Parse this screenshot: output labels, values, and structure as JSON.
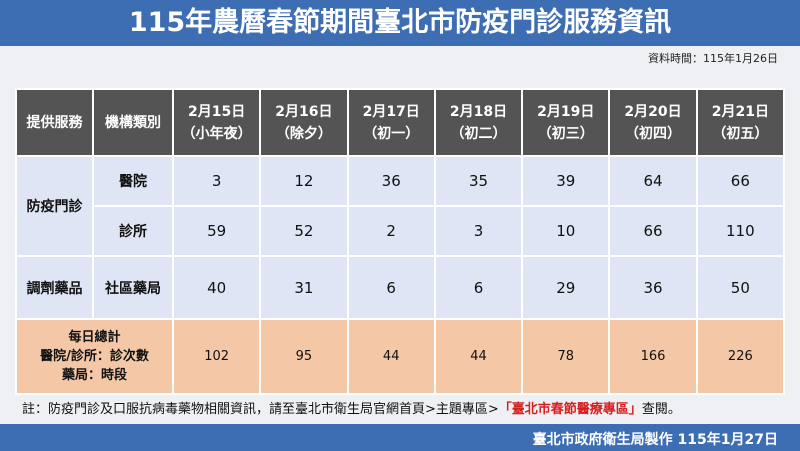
{
  "header": {
    "title": "115年農曆春節期間臺北市防疫門診服務資訊",
    "update_time": "資料時間：115年1月26日"
  },
  "table": {
    "columns": [
      "提供服務",
      "機構類別"
    ],
    "dates": [
      {
        "date": "2月15日",
        "holiday": "（小年夜）"
      },
      {
        "date": "2月16日",
        "holiday": "（除夕）"
      },
      {
        "date": "2月17日",
        "holiday": "（初一）"
      },
      {
        "date": "2月18日",
        "holiday": "（初二）"
      },
      {
        "date": "2月19日",
        "holiday": "（初三）"
      },
      {
        "date": "2月20日",
        "holiday": "（初四）"
      },
      {
        "date": "2月21日",
        "holiday": "（初五）"
      }
    ],
    "groups": [
      {
        "name": "防疫門診",
        "rows": [
          {
            "type": "醫院",
            "values": [
              3,
              12,
              36,
              35,
              39,
              64,
              66
            ]
          },
          {
            "type": "診所",
            "values": [
              59,
              52,
              2,
              3,
              10,
              66,
              110
            ]
          }
        ]
      },
      {
        "name": "調劑藥品",
        "rows": [
          {
            "type": "社區藥局",
            "values": [
              40,
              31,
              6,
              6,
              29,
              36,
              50
            ]
          }
        ]
      }
    ],
    "total": {
      "label": [
        "每日總計",
        "醫院/診所：診次數",
        "藥局：時段"
      ],
      "values": [
        102,
        95,
        44,
        44,
        78,
        166,
        226
      ]
    }
  },
  "note": [
    "註：防疫門診及口服抗病毒藥物相關資訊，請至臺北市衛生局官網首頁>主題專區>",
    "「臺北市春節醫療專區」",
    "查閱。"
  ],
  "footer": "臺北市政府衛生局製作 115年1月27日"
}
